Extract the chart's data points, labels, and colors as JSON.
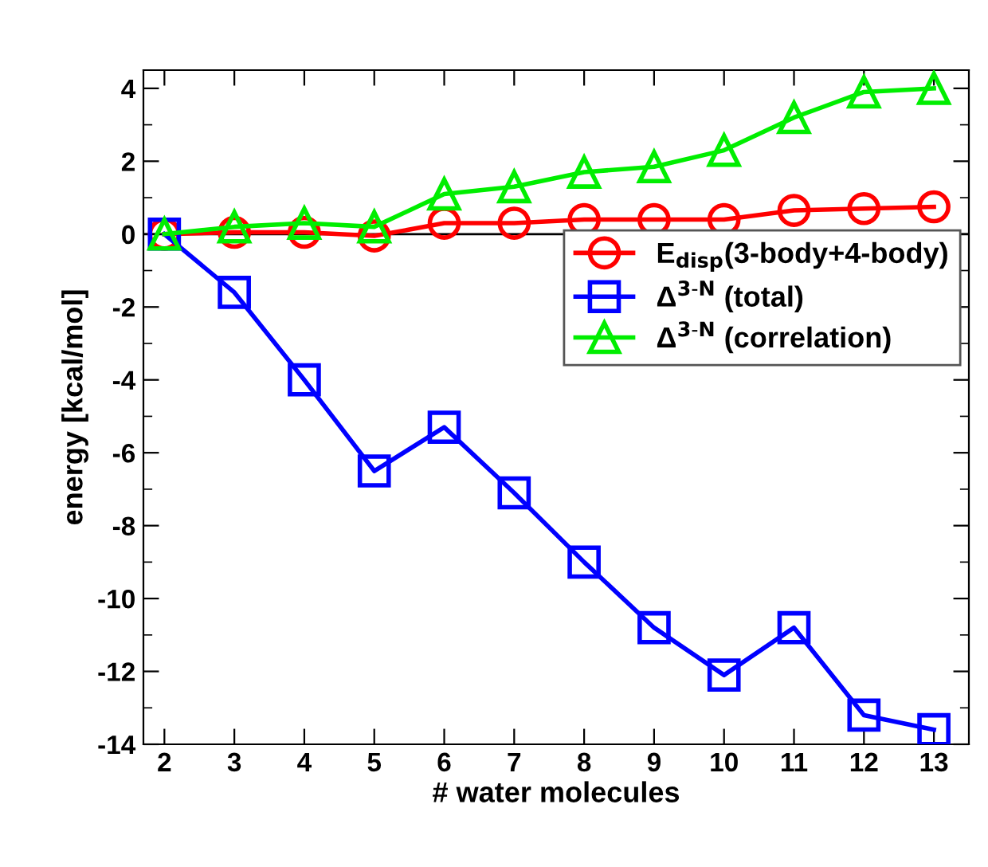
{
  "chart_data": {
    "type": "line",
    "xlabel": "# water molecules",
    "ylabel": "energy [kcal/mol]",
    "x": [
      2,
      3,
      4,
      5,
      6,
      7,
      8,
      9,
      10,
      11,
      12,
      13
    ],
    "series": [
      {
        "name": "E$_{disp}$(3-body+4-body)",
        "color": "#ff0000",
        "marker": "circle",
        "values": [
          0,
          0.05,
          0.05,
          -0.05,
          0.3,
          0.3,
          0.4,
          0.4,
          0.4,
          0.65,
          0.7,
          0.75
        ]
      },
      {
        "name": "Δ$^{3-N}$ (total)",
        "color": "#0000ff",
        "marker": "square",
        "values": [
          0,
          -1.6,
          -4.0,
          -6.5,
          -5.3,
          -7.1,
          -9.0,
          -10.8,
          -12.1,
          -10.8,
          -13.2,
          -13.6
        ]
      },
      {
        "name": "Δ$^{3-N}$ (correlation)",
        "color": "#00ee00",
        "marker": "triangle",
        "values": [
          0,
          0.2,
          0.3,
          0.2,
          1.1,
          1.3,
          1.7,
          1.85,
          2.3,
          3.2,
          3.9,
          4.0
        ]
      }
    ],
    "xlim": [
      1.7,
      13.5
    ],
    "xticks": [
      2,
      3,
      4,
      5,
      6,
      7,
      8,
      9,
      10,
      11,
      12,
      13
    ],
    "ylim": [
      -14,
      4.5
    ],
    "yticks": [
      -14,
      -12,
      -10,
      -8,
      -6,
      -4,
      -2,
      0,
      2,
      4
    ],
    "ref_lines": [
      {
        "axis": "y",
        "value": 0,
        "color": "#000000"
      }
    ],
    "grid": false,
    "legend": "top right",
    "line_style": "solid"
  }
}
